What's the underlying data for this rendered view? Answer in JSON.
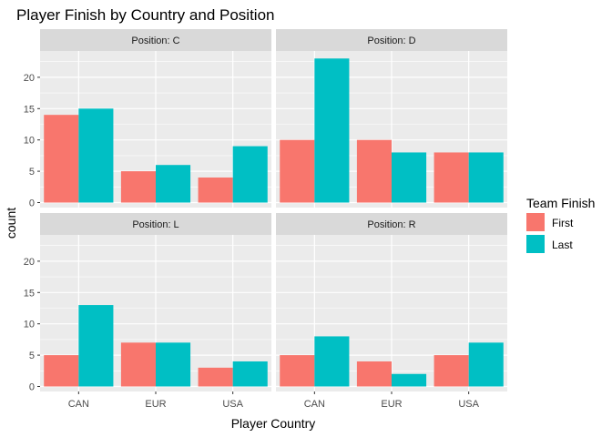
{
  "chart_data": {
    "type": "bar",
    "title": "Player Finish by Country and Position",
    "xlabel": "Player Country",
    "ylabel": "count",
    "categories": [
      "CAN",
      "EUR",
      "USA"
    ],
    "y_ticks": [
      0,
      5,
      10,
      15,
      20
    ],
    "ylim": [
      -0.8,
      24.2
    ],
    "grid": true,
    "legend": {
      "title": "Team Finish",
      "placement": "right",
      "entries": [
        {
          "name": "First",
          "color": "#F8766D"
        },
        {
          "name": "Last",
          "color": "#00BFC4"
        }
      ]
    },
    "facets": [
      {
        "label": "Position: C",
        "series": [
          {
            "name": "First",
            "values": [
              14,
              5,
              4
            ]
          },
          {
            "name": "Last",
            "values": [
              15,
              6,
              9
            ]
          }
        ]
      },
      {
        "label": "Position: D",
        "series": [
          {
            "name": "First",
            "values": [
              10,
              10,
              8
            ]
          },
          {
            "name": "Last",
            "values": [
              23,
              8,
              8
            ]
          }
        ]
      },
      {
        "label": "Position: L",
        "series": [
          {
            "name": "First",
            "values": [
              5,
              7,
              3
            ]
          },
          {
            "name": "Last",
            "values": [
              13,
              7,
              4
            ]
          }
        ]
      },
      {
        "label": "Position: R",
        "series": [
          {
            "name": "First",
            "values": [
              5,
              4,
              5
            ]
          },
          {
            "name": "Last",
            "values": [
              8,
              2,
              7
            ]
          }
        ]
      }
    ]
  },
  "colors": {
    "panel_bg": "#EBEBEB",
    "strip_bg": "#D9D9D9",
    "grid": "#FFFFFF",
    "tick": "#333333"
  }
}
